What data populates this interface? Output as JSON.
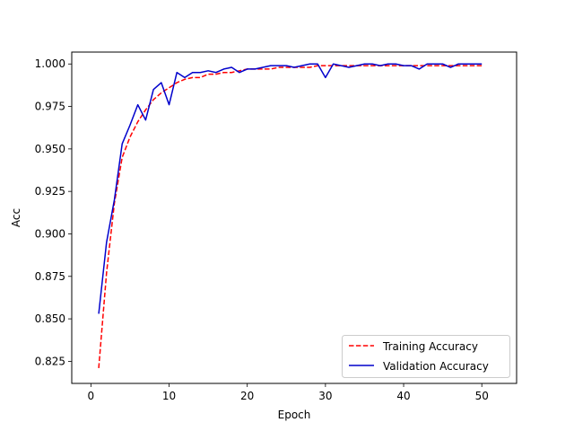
{
  "chart_data": {
    "type": "line",
    "xlabel": "Epoch",
    "ylabel": "Acc",
    "xlim": [
      -2.45,
      54.45
    ],
    "ylim": [
      0.812,
      1.007
    ],
    "xticks": [
      0,
      10,
      20,
      30,
      40,
      50
    ],
    "yticks": [
      0.825,
      0.85,
      0.875,
      0.9,
      0.925,
      0.95,
      0.975,
      1.0
    ],
    "ytick_labels": [
      "0.825",
      "0.850",
      "0.875",
      "0.900",
      "0.925",
      "0.950",
      "0.975",
      "1.000"
    ],
    "grid": false,
    "legend_position": "lower-right",
    "x": [
      1,
      2,
      3,
      4,
      5,
      6,
      7,
      8,
      9,
      10,
      11,
      12,
      13,
      14,
      15,
      16,
      17,
      18,
      19,
      20,
      21,
      22,
      23,
      24,
      25,
      26,
      27,
      28,
      29,
      30,
      31,
      32,
      33,
      34,
      35,
      36,
      37,
      38,
      39,
      40,
      41,
      42,
      43,
      44,
      45,
      46,
      47,
      48,
      49,
      50
    ],
    "series": [
      {
        "name": "Training Accuracy",
        "color": "#ff0000",
        "style": "dashed",
        "values": [
          0.821,
          0.877,
          0.918,
          0.945,
          0.957,
          0.966,
          0.973,
          0.979,
          0.983,
          0.986,
          0.989,
          0.991,
          0.992,
          0.992,
          0.994,
          0.994,
          0.995,
          0.995,
          0.996,
          0.997,
          0.997,
          0.997,
          0.997,
          0.998,
          0.998,
          0.998,
          0.998,
          0.998,
          0.999,
          0.999,
          0.999,
          0.999,
          0.999,
          0.999,
          0.999,
          0.999,
          0.999,
          0.999,
          0.999,
          0.999,
          0.999,
          0.999,
          0.999,
          0.999,
          0.999,
          0.999,
          0.999,
          0.999,
          0.999,
          0.999
        ]
      },
      {
        "name": "Validation Accuracy",
        "color": "#0000cc",
        "style": "solid",
        "values": [
          0.853,
          0.895,
          0.92,
          0.953,
          0.964,
          0.976,
          0.967,
          0.985,
          0.989,
          0.976,
          0.995,
          0.992,
          0.995,
          0.995,
          0.996,
          0.995,
          0.997,
          0.998,
          0.995,
          0.997,
          0.997,
          0.998,
          0.999,
          0.999,
          0.999,
          0.998,
          0.999,
          1.0,
          1.0,
          0.992,
          1.0,
          0.999,
          0.998,
          0.999,
          1.0,
          1.0,
          0.999,
          1.0,
          1.0,
          0.999,
          0.999,
          0.997,
          1.0,
          1.0,
          1.0,
          0.998,
          1.0,
          1.0,
          1.0,
          1.0
        ]
      }
    ]
  }
}
